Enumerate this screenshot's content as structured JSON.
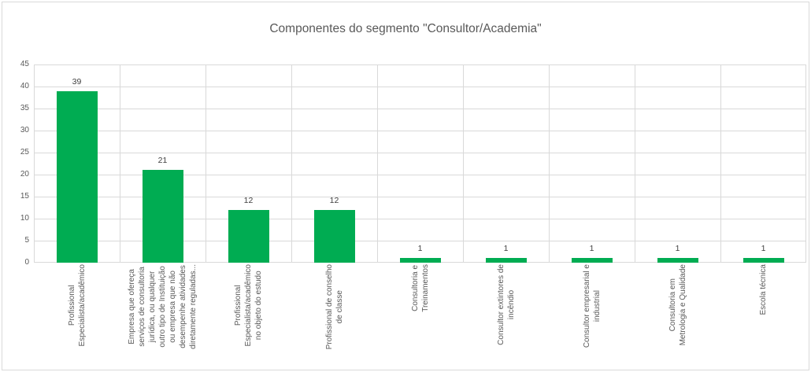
{
  "chart_data": {
    "type": "bar",
    "title": "Componentes do segmento \"Consultor/Academia\"",
    "categories": [
      "Profissional\nEspecialista/acadêmico",
      "Empresa que ofereça\nserviços de consultoria\njurídica, ou qualquer\noutro tipo de Instituição\nou empresa que não\ndesempenhe atividades\ndiretamente reguladas...",
      "Profissional\nEspecialista/acadêmico\nno objeto do estudo",
      "Profissional de conselho\nde classe",
      "Consultoria e\nTreinamentos",
      "Consultor extintores de\nincêndio",
      "Consultor empresarial e\nindustrial",
      "Consultoria em\nMetrologia e Qualidade",
      "Escola técnica"
    ],
    "values": [
      39,
      21,
      12,
      12,
      1,
      1,
      1,
      1,
      1
    ],
    "data_labels": true,
    "xlabel": "",
    "ylabel": "",
    "ylim": [
      0,
      45
    ],
    "y_ticks": [
      0,
      5,
      10,
      15,
      20,
      25,
      30,
      35,
      40,
      45
    ],
    "grid": "horizontal-and-vertical",
    "legend": "none",
    "colors": {
      "bar": "#00ac52",
      "gridline": "#d9d9d9",
      "title_text": "#595959",
      "axis_text": "#595959",
      "data_label_text": "#404040"
    }
  }
}
